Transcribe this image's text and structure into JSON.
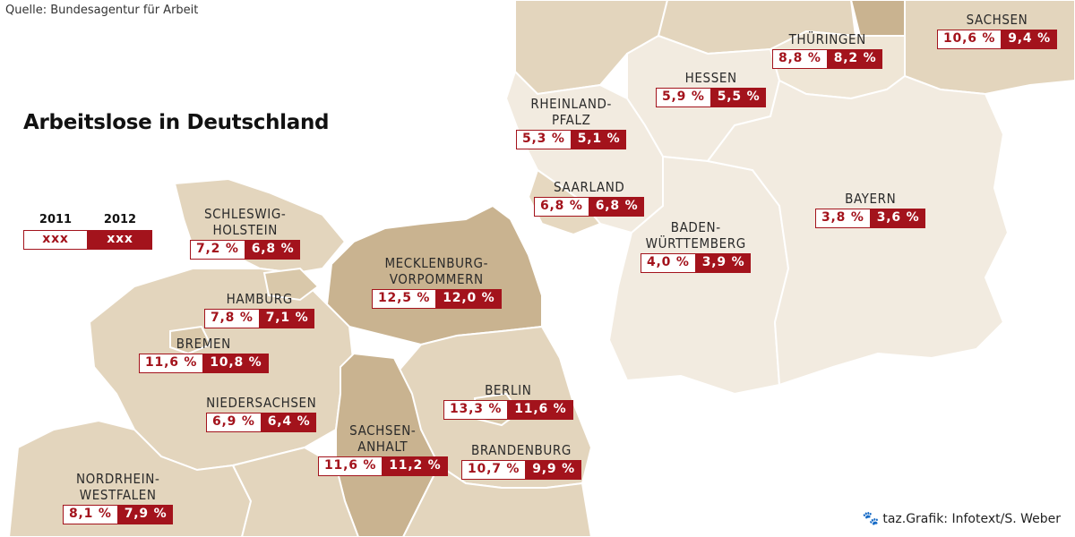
{
  "source": "Quelle: Bundesagentur für Arbeit",
  "title": "Arbeitslose in Deutschland",
  "credit": "taz.Grafik: Infotext/S. Weber",
  "legend": {
    "year1": "2011",
    "year2": "2012",
    "placeholder1": "xxx",
    "placeholder2": "xxx"
  },
  "states": [
    {
      "id": "sachsen",
      "name": [
        "SACHSEN"
      ],
      "v2011": "10,6 %",
      "v2012": "9,4 %"
    },
    {
      "id": "thueringen",
      "name": [
        "THÜRINGEN"
      ],
      "v2011": "8,8 %",
      "v2012": "8,2 %"
    },
    {
      "id": "hessen",
      "name": [
        "HESSEN"
      ],
      "v2011": "5,9 %",
      "v2012": "5,5 %"
    },
    {
      "id": "rheinland-pfalz",
      "name": [
        "RHEINLAND-",
        "PFALZ"
      ],
      "v2011": "5,3 %",
      "v2012": "5,1 %"
    },
    {
      "id": "saarland",
      "name": [
        "SAARLAND"
      ],
      "v2011": "6,8 %",
      "v2012": "6,8 %"
    },
    {
      "id": "bayern",
      "name": [
        "BAYERN"
      ],
      "v2011": "3,8 %",
      "v2012": "3,6 %"
    },
    {
      "id": "baden-wuerttemberg",
      "name": [
        "BADEN-",
        "WÜRTTEMBERG"
      ],
      "v2011": "4,0 %",
      "v2012": "3,9 %"
    },
    {
      "id": "schleswig-holstein",
      "name": [
        "SCHLESWIG-",
        "HOLSTEIN"
      ],
      "v2011": "7,2 %",
      "v2012": "6,8 %"
    },
    {
      "id": "mecklenburg-vorpommern",
      "name": [
        "MECKLENBURG-",
        "VORPOMMERN"
      ],
      "v2011": "12,5 %",
      "v2012": "12,0 %"
    },
    {
      "id": "hamburg",
      "name": [
        "HAMBURG"
      ],
      "v2011": "7,8 %",
      "v2012": "7,1 %"
    },
    {
      "id": "bremen",
      "name": [
        "BREMEN"
      ],
      "v2011": "11,6 %",
      "v2012": "10,8 %"
    },
    {
      "id": "niedersachsen",
      "name": [
        "NIEDERSACHSEN"
      ],
      "v2011": "6,9 %",
      "v2012": "6,4 %"
    },
    {
      "id": "berlin",
      "name": [
        "BERLIN"
      ],
      "v2011": "13,3 %",
      "v2012": "11,6 %"
    },
    {
      "id": "sachsen-anhalt",
      "name": [
        "SACHSEN-",
        "ANHALT"
      ],
      "v2011": "11,6 %",
      "v2012": "11,2 %"
    },
    {
      "id": "brandenburg",
      "name": [
        "BRANDENBURG"
      ],
      "v2011": "10,7 %",
      "v2012": "9,9 %"
    },
    {
      "id": "nordrhein-westfalen",
      "name": [
        "NORDRHEIN-",
        "WESTFALEN"
      ],
      "v2011": "8,1 %",
      "v2012": "7,9 %"
    }
  ],
  "colors": {
    "accent": "#a3131c",
    "land_light": "#f2ebe0",
    "land_medium": "#e3d5bd",
    "land_dark": "#c9b390"
  }
}
